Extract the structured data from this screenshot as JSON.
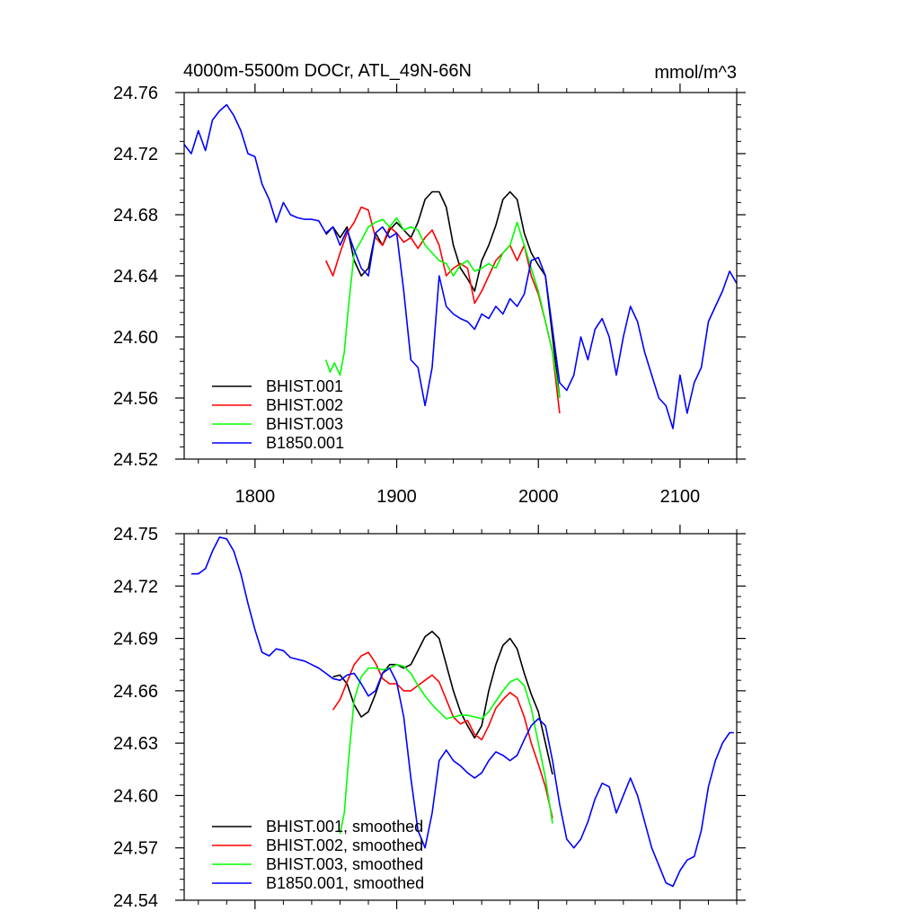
{
  "chart_data": [
    {
      "type": "line",
      "title_left": "4000m-5500m DOCr, ATL_49N-66N",
      "title_right": "mmol/m^3",
      "xlim": [
        1750,
        2140
      ],
      "ylim": [
        24.52,
        24.76
      ],
      "xticks": [
        1800,
        1900,
        2000,
        2100
      ],
      "xtick_labels": [
        "1800",
        "1900",
        "2000",
        "2100"
      ],
      "yticks": [
        24.52,
        24.56,
        24.6,
        24.64,
        24.68,
        24.72,
        24.76
      ],
      "ytick_labels": [
        "24.52",
        "24.56",
        "24.60",
        "24.64",
        "24.68",
        "24.72",
        "24.76"
      ],
      "legend_position": "bottom-left",
      "series": [
        {
          "name": "BHIST.001",
          "color": "#000000",
          "x": [
            1850,
            1855,
            1860,
            1865,
            1870,
            1875,
            1880,
            1885,
            1890,
            1895,
            1900,
            1905,
            1910,
            1915,
            1920,
            1925,
            1930,
            1935,
            1940,
            1945,
            1950,
            1955,
            1960,
            1965,
            1970,
            1975,
            1980,
            1985,
            1990,
            1995,
            2000,
            2005,
            2010,
            2015
          ],
          "y": [
            24.667,
            24.672,
            24.665,
            24.672,
            24.65,
            24.64,
            24.645,
            24.668,
            24.66,
            24.67,
            24.675,
            24.67,
            24.665,
            24.675,
            24.69,
            24.695,
            24.695,
            24.685,
            24.66,
            24.645,
            24.638,
            24.63,
            24.65,
            24.66,
            24.673,
            24.69,
            24.695,
            24.69,
            24.668,
            24.655,
            24.647,
            24.64,
            24.6,
            24.56
          ]
        },
        {
          "name": "BHIST.002",
          "color": "#ff0000",
          "x": [
            1850,
            1855,
            1860,
            1865,
            1870,
            1875,
            1880,
            1885,
            1890,
            1895,
            1900,
            1905,
            1910,
            1915,
            1920,
            1925,
            1930,
            1935,
            1940,
            1945,
            1950,
            1955,
            1960,
            1965,
            1970,
            1975,
            1980,
            1985,
            1990,
            1995,
            2000,
            2005,
            2010,
            2015
          ],
          "y": [
            24.65,
            24.64,
            24.655,
            24.668,
            24.675,
            24.685,
            24.683,
            24.665,
            24.66,
            24.672,
            24.668,
            24.662,
            24.665,
            24.658,
            24.665,
            24.67,
            24.66,
            24.64,
            24.645,
            24.648,
            24.645,
            24.622,
            24.63,
            24.64,
            24.65,
            24.655,
            24.66,
            24.65,
            24.66,
            24.64,
            24.628,
            24.61,
            24.59,
            24.55
          ]
        },
        {
          "name": "BHIST.003",
          "color": "#00ff00",
          "x": [
            1850,
            1853,
            1856,
            1860,
            1863,
            1866,
            1870,
            1875,
            1880,
            1885,
            1890,
            1895,
            1900,
            1905,
            1910,
            1915,
            1920,
            1925,
            1930,
            1935,
            1940,
            1945,
            1950,
            1955,
            1960,
            1965,
            1970,
            1975,
            1980,
            1985,
            1990,
            1995,
            2000,
            2005,
            2010,
            2015
          ],
          "y": [
            24.585,
            24.577,
            24.583,
            24.575,
            24.59,
            24.62,
            24.655,
            24.663,
            24.672,
            24.675,
            24.677,
            24.672,
            24.678,
            24.67,
            24.672,
            24.67,
            24.66,
            24.655,
            24.65,
            24.648,
            24.64,
            24.647,
            24.65,
            24.643,
            24.645,
            24.648,
            24.645,
            24.655,
            24.66,
            24.675,
            24.66,
            24.645,
            24.63,
            24.61,
            24.59,
            24.56
          ]
        },
        {
          "name": "B1850.001",
          "color": "#0000ff",
          "x": [
            1750,
            1755,
            1760,
            1765,
            1770,
            1775,
            1780,
            1785,
            1790,
            1795,
            1800,
            1805,
            1810,
            1815,
            1820,
            1825,
            1830,
            1835,
            1840,
            1845,
            1850,
            1855,
            1860,
            1865,
            1870,
            1875,
            1880,
            1885,
            1890,
            1895,
            1900,
            1905,
            1910,
            1915,
            1920,
            1925,
            1930,
            1935,
            1940,
            1945,
            1950,
            1955,
            1960,
            1965,
            1970,
            1975,
            1980,
            1985,
            1990,
            1995,
            2000,
            2005,
            2010,
            2015,
            2020,
            2025,
            2030,
            2035,
            2040,
            2045,
            2050,
            2055,
            2060,
            2065,
            2070,
            2075,
            2080,
            2085,
            2090,
            2095,
            2100,
            2105,
            2110,
            2115,
            2120,
            2125,
            2130,
            2135,
            2140
          ],
          "y": [
            24.726,
            24.72,
            24.735,
            24.722,
            24.742,
            24.748,
            24.752,
            24.745,
            24.735,
            24.72,
            24.718,
            24.7,
            24.69,
            24.675,
            24.688,
            24.68,
            24.678,
            24.677,
            24.677,
            24.676,
            24.668,
            24.672,
            24.66,
            24.67,
            24.657,
            24.645,
            24.64,
            24.668,
            24.672,
            24.665,
            24.668,
            24.63,
            24.585,
            24.58,
            24.555,
            24.58,
            24.64,
            24.62,
            24.615,
            24.612,
            24.61,
            24.605,
            24.615,
            24.612,
            24.62,
            24.615,
            24.625,
            24.62,
            24.628,
            24.65,
            24.652,
            24.64,
            24.605,
            24.57,
            24.565,
            24.575,
            24.6,
            24.585,
            24.605,
            24.612,
            24.6,
            24.575,
            24.6,
            24.62,
            24.61,
            24.59,
            24.575,
            24.56,
            24.555,
            24.54,
            24.575,
            24.55,
            24.57,
            24.58,
            24.61,
            24.62,
            24.63,
            24.643,
            24.635
          ]
        }
      ]
    },
    {
      "type": "line",
      "xlim": [
        1750,
        2140
      ],
      "ylim": [
        24.54,
        24.75
      ],
      "xticks": [
        1800,
        1900,
        2000,
        2100
      ],
      "yticks": [
        24.54,
        24.57,
        24.6,
        24.63,
        24.66,
        24.69,
        24.72,
        24.75
      ],
      "ytick_labels": [
        "24.54",
        "24.57",
        "24.60",
        "24.63",
        "24.66",
        "24.69",
        "24.72",
        "24.75"
      ],
      "legend_position": "bottom-left",
      "series": [
        {
          "name": "BHIST.001, smoothed",
          "color": "#000000",
          "x": [
            1855,
            1860,
            1865,
            1870,
            1875,
            1880,
            1885,
            1890,
            1895,
            1900,
            1905,
            1910,
            1915,
            1920,
            1925,
            1930,
            1935,
            1940,
            1945,
            1950,
            1955,
            1960,
            1965,
            1970,
            1975,
            1980,
            1985,
            1990,
            1995,
            2000,
            2005,
            2010
          ],
          "y": [
            24.668,
            24.669,
            24.664,
            24.652,
            24.645,
            24.648,
            24.658,
            24.67,
            24.675,
            24.675,
            24.673,
            24.675,
            24.683,
            24.691,
            24.694,
            24.69,
            24.675,
            24.66,
            24.648,
            24.64,
            24.633,
            24.64,
            24.66,
            24.675,
            24.686,
            24.69,
            24.684,
            24.67,
            24.658,
            24.648,
            24.63,
            24.612
          ]
        },
        {
          "name": "BHIST.002, smoothed",
          "color": "#ff0000",
          "x": [
            1855,
            1860,
            1865,
            1870,
            1875,
            1880,
            1885,
            1890,
            1895,
            1900,
            1905,
            1910,
            1915,
            1920,
            1925,
            1930,
            1935,
            1940,
            1945,
            1950,
            1955,
            1960,
            1965,
            1970,
            1975,
            1980,
            1985,
            1990,
            1995,
            2000,
            2005,
            2010
          ],
          "y": [
            24.649,
            24.655,
            24.665,
            24.675,
            24.68,
            24.682,
            24.676,
            24.667,
            24.664,
            24.664,
            24.66,
            24.66,
            24.663,
            24.666,
            24.669,
            24.665,
            24.655,
            24.645,
            24.641,
            24.643,
            24.635,
            24.632,
            24.64,
            24.65,
            24.655,
            24.659,
            24.656,
            24.645,
            24.63,
            24.618,
            24.605,
            24.587
          ]
        },
        {
          "name": "BHIST.003, smoothed",
          "color": "#00ff00",
          "x": [
            1860,
            1863,
            1866,
            1870,
            1875,
            1880,
            1885,
            1890,
            1895,
            1900,
            1905,
            1910,
            1915,
            1920,
            1925,
            1930,
            1935,
            1940,
            1945,
            1950,
            1955,
            1960,
            1965,
            1970,
            1975,
            1980,
            1985,
            1990,
            1995,
            2000,
            2005,
            2010
          ],
          "y": [
            24.578,
            24.59,
            24.62,
            24.655,
            24.668,
            24.673,
            24.673,
            24.672,
            24.673,
            24.675,
            24.674,
            24.67,
            24.663,
            24.657,
            24.652,
            24.648,
            24.644,
            24.645,
            24.646,
            24.646,
            24.645,
            24.644,
            24.648,
            24.654,
            24.66,
            24.665,
            24.667,
            24.663,
            24.65,
            24.63,
            24.61,
            24.584
          ]
        },
        {
          "name": "B1850.001, smoothed",
          "color": "#0000ff",
          "x": [
            1755,
            1760,
            1765,
            1770,
            1775,
            1780,
            1785,
            1790,
            1795,
            1800,
            1805,
            1810,
            1815,
            1820,
            1825,
            1830,
            1835,
            1840,
            1845,
            1850,
            1855,
            1860,
            1865,
            1870,
            1875,
            1880,
            1885,
            1890,
            1895,
            1900,
            1905,
            1910,
            1915,
            1920,
            1925,
            1930,
            1935,
            1940,
            1945,
            1950,
            1955,
            1960,
            1965,
            1970,
            1975,
            1980,
            1985,
            1990,
            1995,
            2000,
            2005,
            2010,
            2015,
            2020,
            2025,
            2030,
            2035,
            2040,
            2045,
            2050,
            2055,
            2060,
            2065,
            2070,
            2075,
            2080,
            2085,
            2090,
            2095,
            2100,
            2105,
            2110,
            2115,
            2120,
            2125,
            2130,
            2135,
            2138
          ],
          "y": [
            24.727,
            24.727,
            24.73,
            24.74,
            24.748,
            24.747,
            24.74,
            24.727,
            24.71,
            24.695,
            24.682,
            24.68,
            24.684,
            24.683,
            24.679,
            24.678,
            24.677,
            24.675,
            24.673,
            24.67,
            24.667,
            24.666,
            24.669,
            24.67,
            24.664,
            24.657,
            24.66,
            24.67,
            24.673,
            24.665,
            24.645,
            24.61,
            24.58,
            24.57,
            24.59,
            24.62,
            24.626,
            24.62,
            24.617,
            24.613,
            24.61,
            24.613,
            24.62,
            24.625,
            24.623,
            24.62,
            24.623,
            24.632,
            24.64,
            24.644,
            24.64,
            24.62,
            24.595,
            24.575,
            24.57,
            24.575,
            24.585,
            24.598,
            24.607,
            24.605,
            24.59,
            24.6,
            24.61,
            24.6,
            24.585,
            24.57,
            24.56,
            24.55,
            24.548,
            24.557,
            24.563,
            24.565,
            24.58,
            24.605,
            24.62,
            24.63,
            24.636,
            24.636
          ]
        }
      ]
    }
  ]
}
